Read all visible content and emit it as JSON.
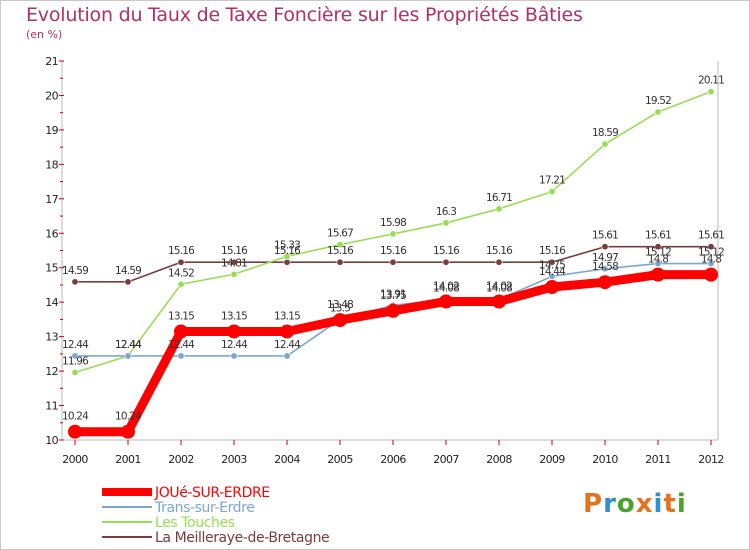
{
  "title": "Evolution du Taux de Taxe Foncière sur les Propriétés Bâties",
  "unit_label": "(en %)",
  "logo": {
    "letters": [
      "P",
      "r",
      "o",
      "x",
      "i",
      "t",
      "i"
    ],
    "colors": [
      "#e4731c",
      "#2f8fd2",
      "#4aa32a",
      "#e4731c",
      "#2f8fd2",
      "#e4731c",
      "#4aa32a"
    ]
  },
  "chart_data": {
    "type": "line",
    "title": "Evolution du Taux de Taxe Foncière sur les Propriétés Bâties",
    "ylabel": "(en %)",
    "xlabel": "",
    "x": [
      "2000",
      "2001",
      "2002",
      "2003",
      "2004",
      "2005",
      "2006",
      "2007",
      "2008",
      "2009",
      "2010",
      "2011",
      "2012"
    ],
    "ylim": [
      10,
      21
    ],
    "yticks": [
      "10",
      "11",
      "12",
      "13",
      "14",
      "15",
      "16",
      "17",
      "18",
      "19",
      "20",
      "21"
    ],
    "grid": false,
    "legend": "bottom-left",
    "series": [
      {
        "name": "JOUé-SUR-ERDRE",
        "color": "#ff0000",
        "emphasis": true,
        "values": [
          10.24,
          10.24,
          13.15,
          13.15,
          13.15,
          13.48,
          13.75,
          14.02,
          14.02,
          14.44,
          14.58,
          14.8,
          14.8
        ],
        "labels": [
          "10.24",
          "10.24",
          "13.15",
          "13.15",
          "13.15",
          "13.48",
          "13.75",
          "14.02",
          "14.02",
          "14.44",
          "14.58",
          "14.8",
          "14.8"
        ]
      },
      {
        "name": "Trans-sur-Erdre",
        "color": "#7ba7cf",
        "emphasis": false,
        "values": [
          12.44,
          12.44,
          12.44,
          12.44,
          12.44,
          13.5,
          13.91,
          14.08,
          14.08,
          14.75,
          14.97,
          15.12,
          15.12
        ],
        "labels": [
          "12.44",
          "12.44",
          "12.44",
          "12.44",
          "12.44",
          "13.5",
          "13.91",
          "14.08",
          "14.08",
          "14.75",
          "14.97",
          "15.12",
          "15.12"
        ]
      },
      {
        "name": "Les Touches",
        "color": "#99dd55",
        "emphasis": false,
        "values": [
          11.96,
          12.44,
          14.52,
          14.81,
          15.33,
          15.67,
          15.98,
          16.3,
          16.71,
          17.21,
          18.59,
          19.52,
          20.11
        ],
        "labels": [
          "11.96",
          "12.44",
          "14.52",
          "14.81",
          "15.33",
          "15.67",
          "15.98",
          "16.3",
          "16.71",
          "17.21",
          "18.59",
          "19.52",
          "20.11"
        ]
      },
      {
        "name": "La Meilleraye-de-Bretagne",
        "color": "#7a3c3c",
        "emphasis": false,
        "values": [
          14.59,
          14.59,
          15.16,
          15.16,
          15.16,
          15.16,
          15.16,
          15.16,
          15.16,
          15.16,
          15.61,
          15.61,
          15.61
        ],
        "labels": [
          "14.59",
          "14.59",
          "15.16",
          "15.16",
          "15.16",
          "15.16",
          "15.16",
          "15.16",
          "15.16",
          "15.16",
          "15.61",
          "15.61",
          "15.61"
        ]
      }
    ]
  }
}
